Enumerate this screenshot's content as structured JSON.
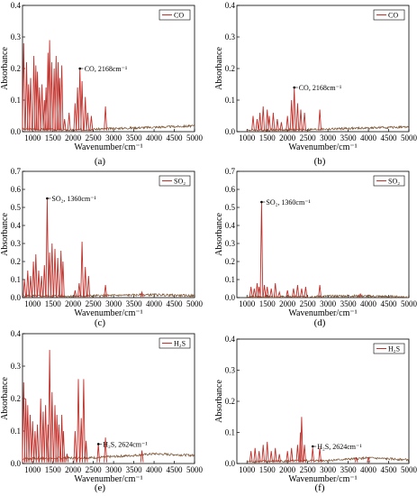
{
  "chart_data": [
    {
      "panel": "(a)",
      "type": "line",
      "ylabel": "Absorbance",
      "xlabel": "Wavenumber/cm⁻¹",
      "xlim": [
        750,
        5000
      ],
      "ylim": [
        0,
        0.4
      ],
      "xticks": [
        1000,
        1500,
        2000,
        2500,
        3000,
        3500,
        4000,
        4500,
        5000
      ],
      "yticks": [
        "0.0",
        "0.1",
        "0.2",
        "0.3",
        "0.4"
      ],
      "legend": "CO",
      "legend_position": "top-right",
      "annotation": {
        "text": "CO, 2168cm⁻¹",
        "x": 2168,
        "y": 0.2
      },
      "baseline": [
        [
          750,
          0.008
        ],
        [
          2000,
          0.005
        ],
        [
          3000,
          0.01
        ],
        [
          4000,
          0.014
        ],
        [
          5000,
          0.018
        ]
      ],
      "peaks": [
        [
          780,
          0.28
        ],
        [
          850,
          0.22
        ],
        [
          900,
          0.15
        ],
        [
          950,
          0.17
        ],
        [
          1030,
          0.24
        ],
        [
          1080,
          0.21
        ],
        [
          1120,
          0.19
        ],
        [
          1170,
          0.14
        ],
        [
          1230,
          0.15
        ],
        [
          1290,
          0.1
        ],
        [
          1330,
          0.14
        ],
        [
          1380,
          0.25
        ],
        [
          1420,
          0.29
        ],
        [
          1470,
          0.22
        ],
        [
          1530,
          0.2
        ],
        [
          1580,
          0.24
        ],
        [
          1630,
          0.22
        ],
        [
          1670,
          0.17
        ],
        [
          1720,
          0.21
        ],
        [
          1790,
          0.04
        ],
        [
          1900,
          0.06
        ],
        [
          2050,
          0.09
        ],
        [
          2110,
          0.14
        ],
        [
          2168,
          0.2
        ],
        [
          2220,
          0.16
        ],
        [
          2300,
          0.11
        ],
        [
          2360,
          0.06
        ],
        [
          2450,
          0.05
        ],
        [
          2800,
          0.08
        ]
      ]
    },
    {
      "panel": "(b)",
      "type": "line",
      "ylabel": "Absorbance",
      "xlabel": "Wavenumber/cm⁻¹",
      "xlim": [
        750,
        5000
      ],
      "ylim": [
        0,
        0.4
      ],
      "xticks": [
        1000,
        1500,
        2000,
        2500,
        3000,
        3500,
        4000,
        4500,
        5000
      ],
      "yticks": [
        "0.0",
        "0.1",
        "0.2",
        "0.3",
        "0.4"
      ],
      "legend": "CO",
      "legend_position": "top-right",
      "annotation": {
        "text": "CO, 2168cm⁻¹",
        "x": 2168,
        "y": 0.14
      },
      "baseline": [
        [
          1000,
          0.005
        ],
        [
          2500,
          0.006
        ],
        [
          3500,
          0.01
        ],
        [
          5000,
          0.015
        ]
      ],
      "peaks": [
        [
          1150,
          0.05
        ],
        [
          1250,
          0.04
        ],
        [
          1320,
          0.06
        ],
        [
          1400,
          0.08
        ],
        [
          1500,
          0.07
        ],
        [
          1550,
          0.05
        ],
        [
          1650,
          0.06
        ],
        [
          1750,
          0.04
        ],
        [
          1850,
          0.03
        ],
        [
          2000,
          0.05
        ],
        [
          2100,
          0.1
        ],
        [
          2168,
          0.14
        ],
        [
          2250,
          0.09
        ],
        [
          2330,
          0.07
        ],
        [
          2420,
          0.06
        ],
        [
          2800,
          0.07
        ]
      ]
    },
    {
      "panel": "(c)",
      "type": "line",
      "ylabel": "Absorbance",
      "xlabel": "Wavenumber/cm⁻¹",
      "xlim": [
        750,
        5000
      ],
      "ylim": [
        0,
        0.7
      ],
      "xticks": [
        1000,
        1500,
        2000,
        2500,
        3000,
        3500,
        4000,
        4500,
        5000
      ],
      "yticks": [
        "0.0",
        "0.1",
        "0.2",
        "0.3",
        "0.4",
        "0.5",
        "0.6",
        "0.7"
      ],
      "legend": "SO₂",
      "legend_position": "top-right",
      "annotation": {
        "text": "SO₂, 1360cm⁻¹",
        "x": 1360,
        "y": 0.55
      },
      "baseline": [
        [
          750,
          0.01
        ],
        [
          2000,
          0.008
        ],
        [
          3000,
          0.012
        ],
        [
          4000,
          0.016
        ],
        [
          5000,
          0.01
        ]
      ],
      "peaks": [
        [
          800,
          0.1
        ],
        [
          880,
          0.15
        ],
        [
          950,
          0.12
        ],
        [
          1020,
          0.2
        ],
        [
          1080,
          0.24
        ],
        [
          1150,
          0.15
        ],
        [
          1220,
          0.12
        ],
        [
          1290,
          0.18
        ],
        [
          1360,
          0.55
        ],
        [
          1420,
          0.25
        ],
        [
          1480,
          0.3
        ],
        [
          1550,
          0.27
        ],
        [
          1620,
          0.22
        ],
        [
          1700,
          0.26
        ],
        [
          1750,
          0.2
        ],
        [
          2050,
          0.04
        ],
        [
          2150,
          0.08
        ],
        [
          2220,
          0.31
        ],
        [
          2300,
          0.17
        ],
        [
          2380,
          0.12
        ],
        [
          2800,
          0.07
        ],
        [
          3700,
          0.03
        ]
      ]
    },
    {
      "panel": "(d)",
      "type": "line",
      "ylabel": "Absorbance",
      "xlabel": "Wavenumber/cm⁻¹",
      "xlim": [
        750,
        5000
      ],
      "ylim": [
        0,
        0.7
      ],
      "xticks": [
        1000,
        1500,
        2000,
        2500,
        3000,
        3500,
        4000,
        4500,
        5000
      ],
      "yticks": [
        "0.0",
        "0.1",
        "0.2",
        "0.3",
        "0.4",
        "0.5",
        "0.6",
        "0.7"
      ],
      "legend": "SO₂",
      "legend_position": "top-right",
      "annotation": {
        "text": "SO₂, 1360cm⁻¹",
        "x": 1360,
        "y": 0.53
      },
      "baseline": [
        [
          1000,
          0.004
        ],
        [
          2500,
          0.005
        ],
        [
          3500,
          0.01
        ],
        [
          5000,
          0.004
        ]
      ],
      "peaks": [
        [
          1100,
          0.06
        ],
        [
          1180,
          0.05
        ],
        [
          1250,
          0.08
        ],
        [
          1300,
          0.06
        ],
        [
          1360,
          0.53
        ],
        [
          1430,
          0.07
        ],
        [
          1500,
          0.06
        ],
        [
          1600,
          0.05
        ],
        [
          1700,
          0.08
        ],
        [
          1800,
          0.03
        ],
        [
          2000,
          0.04
        ],
        [
          2150,
          0.05
        ],
        [
          2250,
          0.07
        ],
        [
          2350,
          0.05
        ],
        [
          2450,
          0.06
        ],
        [
          2800,
          0.07
        ],
        [
          3800,
          0.02
        ]
      ]
    },
    {
      "panel": "(e)",
      "type": "line",
      "ylabel": "Absorbance",
      "xlabel": "Wavenumber/cm⁻¹",
      "xlim": [
        750,
        5000
      ],
      "ylim": [
        0,
        0.4
      ],
      "xticks": [
        1000,
        1500,
        2000,
        2500,
        3000,
        3500,
        4000,
        4500,
        5000
      ],
      "yticks": [
        "0.0",
        "0.1",
        "0.2",
        "0.3",
        "0.4"
      ],
      "legend": "H₂S",
      "legend_position": "top-right",
      "annotation": {
        "text": "H₂S, 2624cm⁻¹",
        "x": 2624,
        "y": 0.06
      },
      "baseline": [
        [
          750,
          0.015
        ],
        [
          2500,
          0.018
        ],
        [
          3500,
          0.025
        ],
        [
          4000,
          0.03
        ],
        [
          5000,
          0.025
        ]
      ],
      "peaks": [
        [
          780,
          0.25
        ],
        [
          830,
          0.2
        ],
        [
          880,
          0.18
        ],
        [
          940,
          0.15
        ],
        [
          1000,
          0.13
        ],
        [
          1060,
          0.1
        ],
        [
          1120,
          0.12
        ],
        [
          1200,
          0.2
        ],
        [
          1260,
          0.16
        ],
        [
          1320,
          0.18
        ],
        [
          1380,
          0.12
        ],
        [
          1420,
          0.35
        ],
        [
          1480,
          0.22
        ],
        [
          1550,
          0.18
        ],
        [
          1600,
          0.15
        ],
        [
          1650,
          0.12
        ],
        [
          1720,
          0.15
        ],
        [
          1760,
          0.1
        ],
        [
          1850,
          0.03
        ],
        [
          2050,
          0.1
        ],
        [
          2130,
          0.26
        ],
        [
          2200,
          0.14
        ],
        [
          2260,
          0.26
        ],
        [
          2320,
          0.07
        ],
        [
          2624,
          0.06
        ],
        [
          2800,
          0.08
        ],
        [
          3700,
          0.04
        ]
      ]
    },
    {
      "panel": "(f)",
      "type": "line",
      "ylabel": "Absorbance",
      "xlabel": "Wavenumber/cm⁻¹",
      "xlim": [
        750,
        5000
      ],
      "ylim": [
        0,
        0.4
      ],
      "xticks": [
        1000,
        1500,
        2000,
        2500,
        3000,
        3500,
        4000,
        4500,
        5000
      ],
      "yticks": [
        "0.0",
        "0.1",
        "0.2",
        "0.3",
        "0.4"
      ],
      "legend": "H₂S",
      "legend_position": "top-right",
      "annotation": {
        "text": "H₂S, 2624cm⁻¹",
        "x": 2624,
        "y": 0.055
      },
      "baseline": [
        [
          1000,
          0.006
        ],
        [
          3000,
          0.01
        ],
        [
          4000,
          0.018
        ],
        [
          5000,
          0.012
        ]
      ],
      "peaks": [
        [
          1100,
          0.04
        ],
        [
          1200,
          0.05
        ],
        [
          1300,
          0.04
        ],
        [
          1400,
          0.06
        ],
        [
          1500,
          0.07
        ],
        [
          1600,
          0.04
        ],
        [
          1700,
          0.05
        ],
        [
          1800,
          0.03
        ],
        [
          2000,
          0.04
        ],
        [
          2100,
          0.05
        ],
        [
          2250,
          0.06
        ],
        [
          2320,
          0.1
        ],
        [
          2350,
          0.15
        ],
        [
          2420,
          0.06
        ],
        [
          2624,
          0.05
        ],
        [
          2800,
          0.05
        ],
        [
          3700,
          0.02
        ],
        [
          4000,
          0.02
        ]
      ]
    }
  ]
}
